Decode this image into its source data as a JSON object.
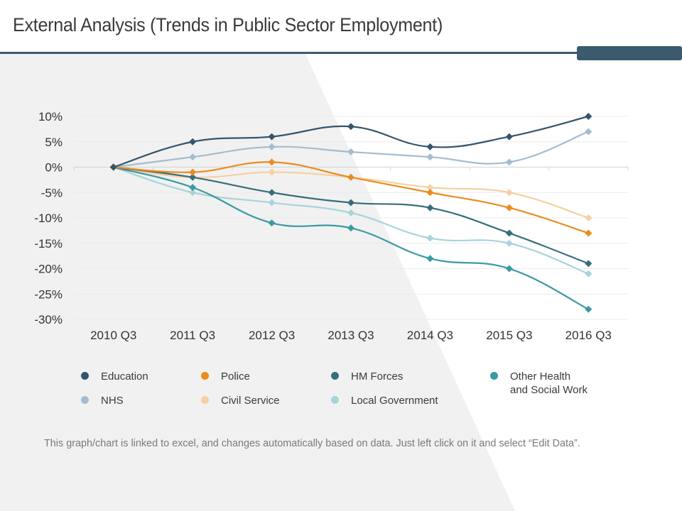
{
  "page": {
    "title": "External Analysis (Trends in Public Sector Employment)",
    "footnote": "This graph/chart is linked to excel, and changes automatically based on data. Just left click on it and select “Edit Data”.",
    "colors": {
      "accent_bar": "#3b5a6e",
      "background_shape": "#f1f1f1"
    }
  },
  "chart_data": {
    "type": "line",
    "smooth": true,
    "markers": "diamond",
    "title": "",
    "xlabel": "",
    "ylabel": "",
    "categories": [
      "2010 Q3",
      "2011 Q3",
      "2012 Q3",
      "2013 Q3",
      "2014 Q3",
      "2015 Q3",
      "2016 Q3"
    ],
    "ylim": [
      -30,
      10
    ],
    "yticks": [
      10,
      5,
      0,
      -5,
      -10,
      -15,
      -20,
      -25,
      -30
    ],
    "ytick_labels": [
      "10%",
      "5%",
      "0%",
      "-5%",
      "-10%",
      "-15%",
      "-20%",
      "-25%",
      "-30%"
    ],
    "grid": true,
    "legend_position": "bottom",
    "series": [
      {
        "name": "Education",
        "color": "#35546b",
        "values": [
          0,
          5,
          6,
          8,
          4,
          6,
          10
        ]
      },
      {
        "name": "NHS",
        "color": "#a5bccf",
        "values": [
          0,
          2,
          4,
          3,
          2,
          1,
          7
        ]
      },
      {
        "name": "Police",
        "color": "#ea8c1e",
        "values": [
          0,
          -1,
          1,
          -2,
          -5,
          -8,
          -13
        ]
      },
      {
        "name": "Civil Service",
        "color": "#f7cfa3",
        "values": [
          0,
          -2,
          -1,
          -2,
          -4,
          -5,
          -10
        ]
      },
      {
        "name": "HM Forces",
        "color": "#356f7c",
        "values": [
          0,
          -2,
          -5,
          -7,
          -8,
          -13,
          -19
        ]
      },
      {
        "name": "Local Government",
        "color": "#a8d4db",
        "values": [
          0,
          -5,
          -7,
          -9,
          -14,
          -15,
          -21
        ]
      },
      {
        "name": "Other Health\nand Social Work",
        "color": "#3b9aa1",
        "values": [
          0,
          -4,
          -11,
          -12,
          -18,
          -20,
          -28
        ]
      }
    ]
  }
}
